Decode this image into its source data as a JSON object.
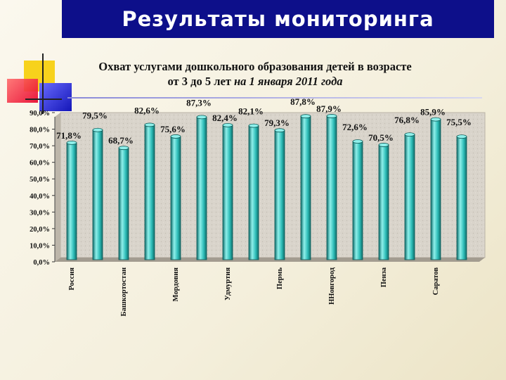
{
  "header": {
    "title": "Результаты мониторинга"
  },
  "chart_data": {
    "type": "bar",
    "title_line1": "Охват услугами дошкольного образования детей в возрасте",
    "title_line2_prefix": "от 3 до 5 лет ",
    "title_line2_italic": "на 1 января 2011 года",
    "categories": [
      "Россия",
      "",
      "Башкортостан",
      "",
      "Мордовия",
      "",
      "Удмуртия",
      "",
      "Пермь",
      "",
      "ННовгород",
      "",
      "Пенза",
      "",
      "Саратов",
      ""
    ],
    "values": [
      71.8,
      79.5,
      68.7,
      82.6,
      75.6,
      87.3,
      82.4,
      82.1,
      79.3,
      87.8,
      87.9,
      72.6,
      70.5,
      76.8,
      85.9,
      75.5
    ],
    "value_labels": [
      "71,8%",
      "79,5%",
      "68,7%",
      "82,6%",
      "75,6%",
      "87,3%",
      "82,4%",
      "82,1%",
      "79,3%",
      "87,8%",
      "87,9%",
      "72,6%",
      "70,5%",
      "76,8%",
      "85,9%",
      "75,5%"
    ],
    "y_ticks": [
      "0,0%",
      "10,0%",
      "20,0%",
      "30,0%",
      "40,0%",
      "50,0%",
      "60,0%",
      "70,0%",
      "80,0%",
      "90,0%"
    ],
    "ylim": [
      0,
      90
    ],
    "grid": false,
    "legend": "none",
    "colors": {
      "bar": "#2ebdb8",
      "bar_dark": "#0f6d6a",
      "bar_light": "#8ff0eb",
      "plot_bg": "#d9d4cb",
      "floor": "#a39c90"
    }
  }
}
